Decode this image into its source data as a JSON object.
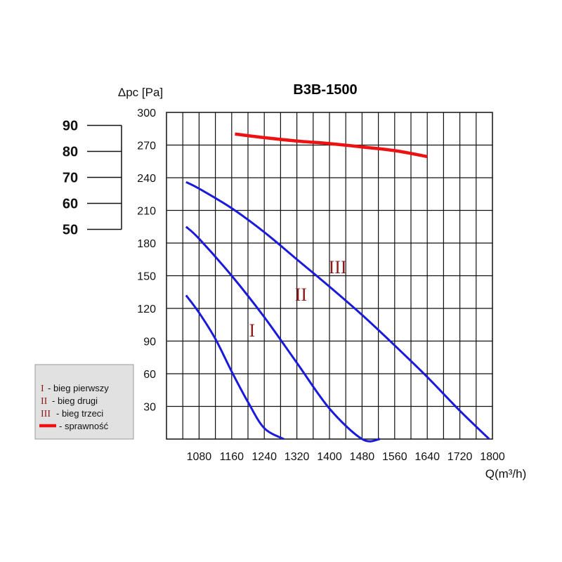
{
  "chart_data": {
    "type": "line",
    "title": "B3B-1500",
    "ylabel": "Δpc [Pa]",
    "xlabel": "Q(m³/h)",
    "x_ticks": [
      1080,
      1160,
      1240,
      1320,
      1400,
      1480,
      1560,
      1640,
      1720,
      1800
    ],
    "xlim": [
      1000,
      1800
    ],
    "y_ticks": [
      30,
      60,
      90,
      120,
      150,
      180,
      210,
      240,
      270,
      300
    ],
    "ylim": [
      0,
      300
    ],
    "efficiency_axis": {
      "ticks": [
        90,
        80,
        70,
        60,
        50
      ],
      "range": [
        45,
        95
      ]
    },
    "series": [
      {
        "name": "I",
        "color": "#1a1adb",
        "points": [
          [
            1048,
            132
          ],
          [
            1080,
            116
          ],
          [
            1120,
            92
          ],
          [
            1160,
            62
          ],
          [
            1200,
            34
          ],
          [
            1240,
            10
          ],
          [
            1288,
            0
          ]
        ]
      },
      {
        "name": "II",
        "color": "#1a1adb",
        "points": [
          [
            1048,
            195
          ],
          [
            1080,
            184
          ],
          [
            1160,
            150
          ],
          [
            1240,
            112
          ],
          [
            1320,
            70
          ],
          [
            1400,
            28
          ],
          [
            1480,
            0
          ],
          [
            1524,
            0
          ]
        ]
      },
      {
        "name": "III",
        "color": "#1a1adb",
        "points": [
          [
            1048,
            236
          ],
          [
            1080,
            230
          ],
          [
            1160,
            212
          ],
          [
            1240,
            190
          ],
          [
            1320,
            165
          ],
          [
            1400,
            140
          ],
          [
            1480,
            114
          ],
          [
            1560,
            86
          ],
          [
            1640,
            57
          ],
          [
            1720,
            26
          ],
          [
            1792,
            0
          ]
        ]
      },
      {
        "name": "sprawność",
        "color": "#ee1111",
        "axis": "efficiency",
        "points": [
          [
            1168,
            86.7
          ],
          [
            1240,
            85.3
          ],
          [
            1320,
            84.0
          ],
          [
            1400,
            83.0
          ],
          [
            1480,
            81.7
          ],
          [
            1560,
            80.3
          ],
          [
            1640,
            78.0
          ]
        ]
      }
    ],
    "curve_labels": [
      {
        "text": "I",
        "x": 1210,
        "y": 100
      },
      {
        "text": "II",
        "x": 1330,
        "y": 133
      },
      {
        "text": "III",
        "x": 1420,
        "y": 158
      }
    ],
    "grid": true,
    "legend": {
      "position": "bottom-left",
      "items": [
        {
          "mark": "I",
          "text": "- bieg pierwszy"
        },
        {
          "mark": "II",
          "text": "- bieg drugi"
        },
        {
          "mark": "III",
          "text": "- bieg trzeci"
        },
        {
          "mark": "line",
          "text": "- sprawność"
        }
      ]
    }
  }
}
